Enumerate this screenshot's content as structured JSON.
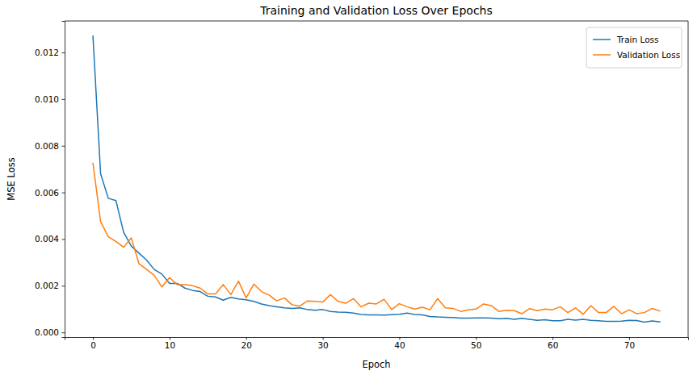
{
  "chart_data": {
    "type": "line",
    "title": "Training and Validation Loss Over Epochs",
    "x_label": "Epoch",
    "y_label": "MSE Loss",
    "x": [
      0,
      1,
      2,
      3,
      4,
      5,
      6,
      7,
      8,
      9,
      10,
      11,
      12,
      13,
      14,
      15,
      16,
      17,
      18,
      19,
      20,
      21,
      22,
      23,
      24,
      25,
      26,
      27,
      28,
      29,
      30,
      31,
      32,
      33,
      34,
      35,
      36,
      37,
      38,
      39,
      40,
      41,
      42,
      43,
      44,
      45,
      46,
      47,
      48,
      49,
      50,
      51,
      52,
      53,
      54,
      55,
      56,
      57,
      58,
      59,
      60,
      61,
      62,
      63,
      64,
      65,
      66,
      67,
      68,
      69,
      70,
      71,
      72,
      73,
      74
    ],
    "series": [
      {
        "name": "Train Loss",
        "color": "#1f77b4",
        "values": [
          0.0127,
          0.0068,
          0.00575,
          0.00565,
          0.0043,
          0.0037,
          0.0034,
          0.0031,
          0.0027,
          0.0025,
          0.0021,
          0.0021,
          0.0019,
          0.0018,
          0.00175,
          0.00155,
          0.00152,
          0.00138,
          0.0015,
          0.00143,
          0.0014,
          0.00133,
          0.00122,
          0.00115,
          0.0011,
          0.00105,
          0.00103,
          0.00105,
          0.00098,
          0.00095,
          0.00098,
          0.0009,
          0.00087,
          0.00086,
          0.00083,
          0.00077,
          0.00075,
          0.00075,
          0.00074,
          0.00076,
          0.00078,
          0.00083,
          0.00077,
          0.00075,
          0.00068,
          0.00066,
          0.00065,
          0.00064,
          0.00061,
          0.00061,
          0.00062,
          0.00062,
          0.00061,
          0.00059,
          0.0006,
          0.00056,
          0.0006,
          0.00056,
          0.00052,
          0.00054,
          0.0005,
          0.0005,
          0.00056,
          0.00053,
          0.00056,
          0.00052,
          0.0005,
          0.00047,
          0.00047,
          0.00048,
          0.00052,
          0.00051,
          0.00044,
          0.00049,
          0.00045
        ]
      },
      {
        "name": "Validation Loss",
        "color": "#ff7f0e",
        "values": [
          0.00725,
          0.00475,
          0.0041,
          0.0039,
          0.00365,
          0.00405,
          0.00295,
          0.0027,
          0.00245,
          0.00195,
          0.00235,
          0.00205,
          0.00205,
          0.002,
          0.0019,
          0.00165,
          0.00165,
          0.00205,
          0.00162,
          0.0022,
          0.00148,
          0.00207,
          0.00175,
          0.0016,
          0.00135,
          0.00148,
          0.00118,
          0.00113,
          0.00135,
          0.00133,
          0.0013,
          0.00162,
          0.00133,
          0.00125,
          0.00145,
          0.0011,
          0.00125,
          0.00122,
          0.00142,
          0.00098,
          0.00123,
          0.0011,
          0.001,
          0.00108,
          0.00097,
          0.00145,
          0.00105,
          0.00103,
          0.0009,
          0.00097,
          0.001,
          0.00122,
          0.00115,
          0.0009,
          0.00095,
          0.00093,
          0.0008,
          0.00102,
          0.00093,
          0.001,
          0.00097,
          0.0011,
          0.00085,
          0.00105,
          0.00078,
          0.00115,
          0.00085,
          0.00085,
          0.00112,
          0.0008,
          0.00097,
          0.0008,
          0.00085,
          0.00103,
          0.00092
        ]
      }
    ],
    "xlim": [
      -3.7,
      77.7
    ],
    "xticks": [
      0,
      10,
      20,
      30,
      40,
      50,
      60,
      70
    ],
    "ylim": [
      -0.0002,
      0.01335
    ],
    "yticks": [
      {
        "value": 0,
        "label": "0.000"
      },
      {
        "value": 0.002,
        "label": "0.002"
      },
      {
        "value": 0.004,
        "label": "0.004"
      },
      {
        "value": 0.006,
        "label": "0.006"
      },
      {
        "value": 0.008,
        "label": "0.008"
      },
      {
        "value": 0.01,
        "label": "0.010"
      },
      {
        "value": 0.012,
        "label": "0.012"
      }
    ],
    "grid": false,
    "legend": "upper right"
  }
}
